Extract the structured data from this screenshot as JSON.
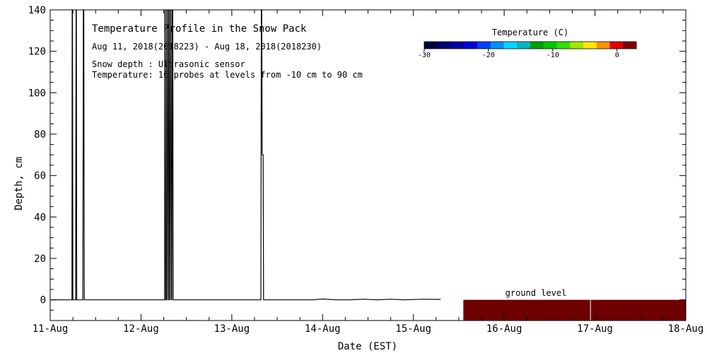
{
  "chart_data": {
    "type": "line",
    "title": "Temperature Profile in the Snow Pack",
    "subtitle": "Aug 11, 2018(2018223) - Aug 18, 2018(2018230)",
    "notes": [
      "Snow depth : Ultrasonic sensor",
      "Temperature: 16 probes at levels from -10 cm to 90 cm"
    ],
    "xlabel": "Date (EST)",
    "ylabel": "Depth, cm",
    "x_tick_labels": [
      "11-Aug",
      "12-Aug",
      "13-Aug",
      "14-Aug",
      "15-Aug",
      "16-Aug",
      "17-Aug",
      "18-Aug"
    ],
    "xlim": [
      0,
      7
    ],
    "ylim": [
      -10,
      140
    ],
    "y_ticks": [
      0,
      20,
      40,
      60,
      80,
      100,
      120,
      140
    ],
    "ground_label": "ground level",
    "colorbar": {
      "title": "Temperature (C)",
      "range": [
        -30,
        3
      ],
      "tick_labels": [
        "-30",
        "-20",
        "-10",
        "0"
      ],
      "tick_values": [
        -30,
        -20,
        -10,
        0
      ],
      "colors": [
        "#000040",
        "#000070",
        "#0000a0",
        "#0000d8",
        "#0040ff",
        "#0090ff",
        "#00d8ff",
        "#00b8c0",
        "#00a000",
        "#00c800",
        "#30e000",
        "#a0e800",
        "#ffe800",
        "#ff9000",
        "#e00000",
        "#800000"
      ]
    },
    "series": [
      {
        "values_x": [
          0,
          0.24,
          0.242,
          0.245,
          0.25,
          0.28,
          0.285,
          0.288,
          0.292,
          0.36,
          0.365,
          0.37,
          0.375,
          1.26,
          1.263,
          1.267,
          1.272,
          1.28,
          1.285,
          1.29,
          1.295,
          1.3,
          1.305,
          1.31,
          1.315,
          1.32,
          1.325,
          1.33,
          1.335,
          1.34,
          1.345,
          1.35,
          1.355,
          2.32,
          2.325,
          2.33,
          2.335,
          2.345,
          2.35,
          2.8,
          2.9,
          3.0,
          3.15,
          3.3,
          3.45,
          3.6,
          3.75,
          3.9,
          4.1,
          4.3
        ],
        "values_y": [
          0,
          0,
          140,
          140,
          0,
          0,
          140,
          140,
          0,
          0,
          140,
          140,
          0,
          0,
          140,
          140,
          0,
          0,
          140,
          140,
          0,
          0,
          140,
          140,
          0,
          0,
          140,
          140,
          0,
          0,
          140,
          140,
          0,
          0,
          140,
          140,
          70,
          70,
          0,
          0,
          0,
          0.4,
          0,
          0,
          0.3,
          0,
          0.3,
          0,
          0.3,
          0.2
        ]
      }
    ],
    "ground_bar": {
      "x_start": 4.55,
      "x_end": 7,
      "y_top": 0,
      "y_bottom": -10,
      "color": "#6e0000"
    }
  }
}
